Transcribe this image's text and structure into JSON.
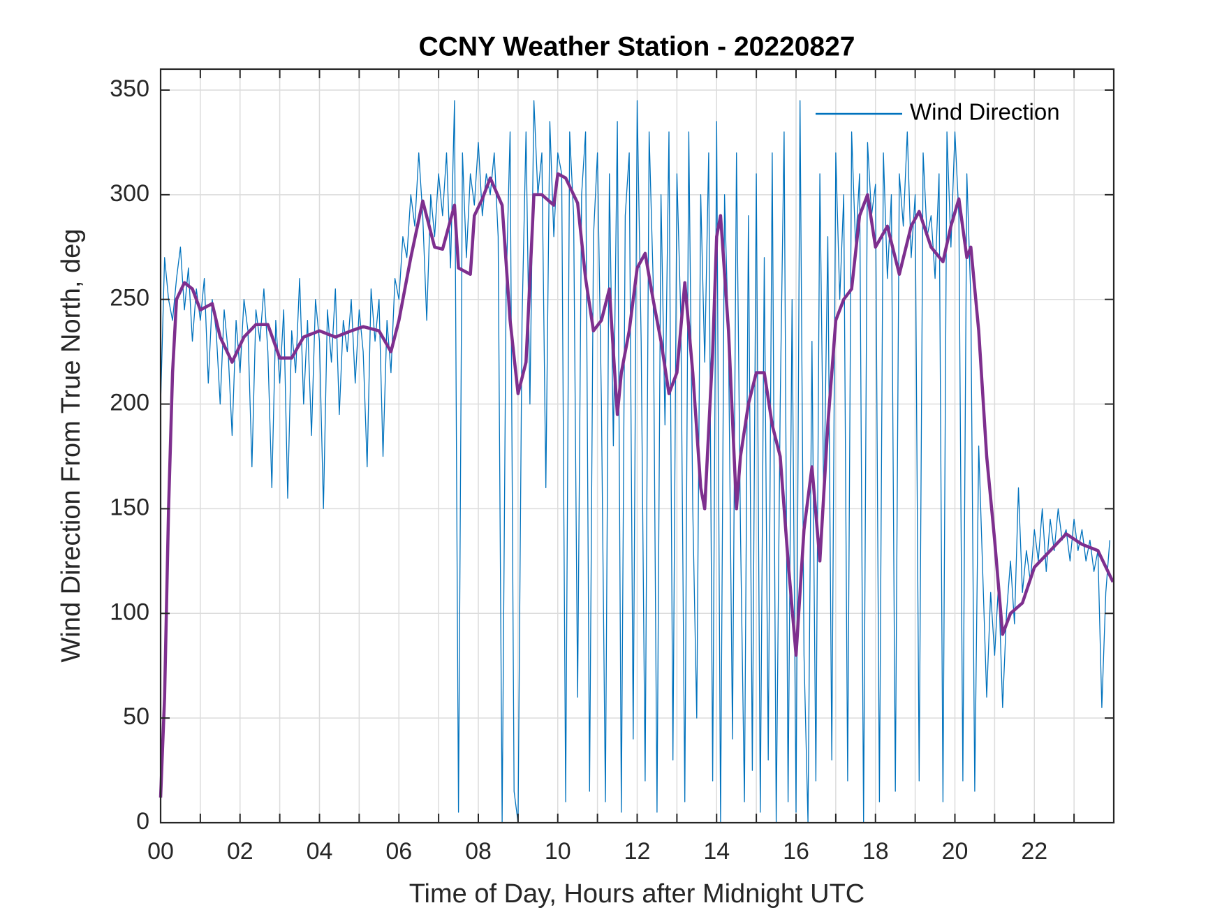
{
  "chart_data": {
    "type": "line",
    "title": "CCNY Weather Station - 20220827",
    "xlabel": "Time of Day, Hours after Midnight UTC",
    "ylabel": "Wind Direction From True North, deg",
    "xlim": [
      0,
      24
    ],
    "ylim": [
      0,
      360
    ],
    "xticks": [
      {
        "value": 0,
        "label": "00"
      },
      {
        "value": 2,
        "label": "02"
      },
      {
        "value": 4,
        "label": "04"
      },
      {
        "value": 6,
        "label": "06"
      },
      {
        "value": 8,
        "label": "08"
      },
      10,
      12,
      14,
      16,
      18,
      20,
      22
    ],
    "xminorticks": [
      1,
      3,
      5,
      7,
      9,
      11,
      13,
      15,
      17,
      19,
      21,
      23
    ],
    "yticks": [
      0,
      50,
      100,
      150,
      200,
      250,
      300,
      350
    ],
    "grid": true,
    "legend": "upper right",
    "series": [
      {
        "name": "Wind Direction",
        "color": "#0072BD",
        "width": 1.3,
        "x": [
          0,
          0.1,
          0.2,
          0.3,
          0.4,
          0.5,
          0.6,
          0.7,
          0.8,
          0.9,
          1,
          1.1,
          1.2,
          1.3,
          1.4,
          1.5,
          1.6,
          1.7,
          1.8,
          1.9,
          2,
          2.1,
          2.2,
          2.3,
          2.4,
          2.5,
          2.6,
          2.7,
          2.8,
          2.9,
          3,
          3.1,
          3.2,
          3.3,
          3.4,
          3.5,
          3.6,
          3.7,
          3.8,
          3.9,
          4,
          4.1,
          4.2,
          4.3,
          4.4,
          4.5,
          4.6,
          4.7,
          4.8,
          4.9,
          5,
          5.1,
          5.2,
          5.3,
          5.4,
          5.5,
          5.6,
          5.7,
          5.8,
          5.9,
          6,
          6.1,
          6.2,
          6.3,
          6.4,
          6.5,
          6.6,
          6.7,
          6.8,
          6.9,
          7,
          7.1,
          7.2,
          7.3,
          7.4,
          7.5,
          7.6,
          7.7,
          7.8,
          7.9,
          8,
          8.1,
          8.2,
          8.3,
          8.4,
          8.5,
          8.6,
          8.7,
          8.8,
          8.9,
          9,
          9.1,
          9.2,
          9.3,
          9.4,
          9.5,
          9.6,
          9.7,
          9.8,
          9.9,
          10,
          10.1,
          10.2,
          10.3,
          10.4,
          10.5,
          10.6,
          10.7,
          10.8,
          10.9,
          11,
          11.1,
          11.2,
          11.3,
          11.4,
          11.5,
          11.6,
          11.7,
          11.8,
          11.9,
          12,
          12.1,
          12.2,
          12.3,
          12.4,
          12.5,
          12.6,
          12.7,
          12.8,
          12.9,
          13,
          13.1,
          13.2,
          13.3,
          13.4,
          13.5,
          13.6,
          13.7,
          13.8,
          13.9,
          14,
          14.1,
          14.2,
          14.3,
          14.4,
          14.5,
          14.6,
          14.7,
          14.8,
          14.9,
          15,
          15.1,
          15.2,
          15.3,
          15.4,
          15.5,
          15.6,
          15.7,
          15.8,
          15.9,
          16,
          16.1,
          16.2,
          16.3,
          16.4,
          16.5,
          16.6,
          16.7,
          16.8,
          16.9,
          17,
          17.1,
          17.2,
          17.3,
          17.4,
          17.5,
          17.6,
          17.7,
          17.8,
          17.9,
          18,
          18.1,
          18.2,
          18.3,
          18.4,
          18.5,
          18.6,
          18.7,
          18.8,
          18.9,
          19,
          19.1,
          19.2,
          19.3,
          19.4,
          19.5,
          19.6,
          19.7,
          19.8,
          19.9,
          20,
          20.1,
          20.2,
          20.3,
          20.4,
          20.5,
          20.6,
          20.7,
          20.8,
          20.9,
          21,
          21.1,
          21.2,
          21.3,
          21.4,
          21.5,
          21.6,
          21.7,
          21.8,
          21.9,
          22,
          22.1,
          22.2,
          22.3,
          22.4,
          22.5,
          22.6,
          22.7,
          22.8,
          22.9,
          23,
          23.1,
          23.2,
          23.3,
          23.4,
          23.5,
          23.6,
          23.7,
          23.8,
          23.9
        ],
        "values": [
          200,
          270,
          250,
          240,
          260,
          275,
          245,
          265,
          230,
          255,
          240,
          260,
          210,
          250,
          235,
          200,
          245,
          225,
          185,
          240,
          215,
          250,
          235,
          170,
          245,
          230,
          255,
          225,
          160,
          240,
          210,
          245,
          155,
          235,
          215,
          260,
          200,
          240,
          185,
          250,
          230,
          150,
          245,
          220,
          255,
          195,
          240,
          225,
          250,
          210,
          245,
          225,
          170,
          255,
          230,
          250,
          175,
          240,
          215,
          260,
          250,
          280,
          270,
          300,
          285,
          320,
          290,
          240,
          300,
          280,
          310,
          290,
          320,
          265,
          345,
          5,
          320,
          270,
          310,
          295,
          325,
          290,
          310,
          300,
          320,
          280,
          0,
          255,
          330,
          15,
          0,
          240,
          330,
          200,
          345,
          300,
          320,
          160,
          335,
          280,
          320,
          310,
          10,
          330,
          290,
          60,
          300,
          330,
          15,
          280,
          320,
          200,
          10,
          310,
          180,
          335,
          5,
          290,
          320,
          40,
          345,
          230,
          20,
          330,
          260,
          5,
          300,
          190,
          330,
          30,
          310,
          240,
          10,
          330,
          150,
          50,
          300,
          220,
          320,
          20,
          335,
          0,
          300,
          230,
          40,
          320,
          140,
          10,
          290,
          25,
          310,
          5,
          270,
          30,
          320,
          0,
          200,
          330,
          10,
          250,
          5,
          345,
          80,
          0,
          230,
          20,
          310,
          150,
          280,
          30,
          320,
          250,
          300,
          20,
          330,
          275,
          310,
          0,
          325,
          290,
          305,
          10,
          320,
          260,
          300,
          15,
          310,
          285,
          330,
          270,
          300,
          20,
          320,
          280,
          290,
          260,
          310,
          10,
          330,
          275,
          330,
          290,
          20,
          310,
          250,
          15,
          180,
          120,
          60,
          110,
          80,
          115,
          55,
          100,
          125,
          95,
          160,
          110,
          130,
          115,
          140,
          125,
          150,
          120,
          145,
          130,
          150,
          135,
          140,
          125,
          145,
          130,
          140,
          125,
          135,
          120,
          130,
          55,
          110,
          135
        ]
      },
      {
        "color": "#7E2F8E",
        "width": 4.5,
        "x": [
          0,
          0.1,
          0.2,
          0.3,
          0.4,
          0.6,
          0.8,
          1.0,
          1.3,
          1.5,
          1.8,
          2.1,
          2.4,
          2.7,
          3.0,
          3.3,
          3.6,
          4.0,
          4.4,
          4.8,
          5.1,
          5.5,
          5.8,
          6.0,
          6.3,
          6.6,
          6.9,
          7.1,
          7.4,
          7.5,
          7.8,
          7.9,
          8.1,
          8.3,
          8.6,
          8.8,
          9.0,
          9.2,
          9.4,
          9.6,
          9.9,
          10.0,
          10.2,
          10.5,
          10.7,
          10.9,
          11.1,
          11.3,
          11.4,
          11.5,
          11.6,
          11.8,
          12.0,
          12.2,
          12.4,
          12.6,
          12.8,
          13.0,
          13.2,
          13.4,
          13.6,
          13.7,
          13.9,
          14.0,
          14.1,
          14.3,
          14.5,
          14.6,
          14.8,
          15.0,
          15.2,
          15.4,
          15.6,
          15.8,
          16.0,
          16.2,
          16.4,
          16.6,
          16.8,
          17.0,
          17.2,
          17.4,
          17.6,
          17.8,
          18.0,
          18.3,
          18.6,
          18.9,
          19.1,
          19.4,
          19.7,
          19.9,
          20.1,
          20.3,
          20.4,
          20.6,
          20.8,
          21.0,
          21.2,
          21.4,
          21.7,
          22.0,
          22.4,
          22.8,
          23.2,
          23.6,
          23.98
        ],
        "values": [
          12,
          60,
          150,
          215,
          250,
          258,
          255,
          245,
          248,
          232,
          220,
          232,
          238,
          238,
          222,
          222,
          232,
          235,
          232,
          235,
          237,
          235,
          225,
          240,
          270,
          297,
          275,
          274,
          295,
          265,
          262,
          290,
          298,
          308,
          295,
          240,
          205,
          220,
          300,
          300,
          295,
          310,
          308,
          296,
          260,
          235,
          240,
          255,
          225,
          195,
          215,
          235,
          265,
          272,
          250,
          230,
          205,
          215,
          258,
          215,
          160,
          150,
          225,
          280,
          290,
          235,
          150,
          175,
          200,
          215,
          215,
          190,
          175,
          125,
          80,
          140,
          170,
          125,
          190,
          240,
          250,
          255,
          290,
          300,
          275,
          285,
          262,
          285,
          292,
          275,
          268,
          285,
          298,
          270,
          275,
          235,
          175,
          135,
          90,
          100,
          105,
          122,
          130,
          138,
          133,
          130,
          115
        ]
      }
    ]
  }
}
